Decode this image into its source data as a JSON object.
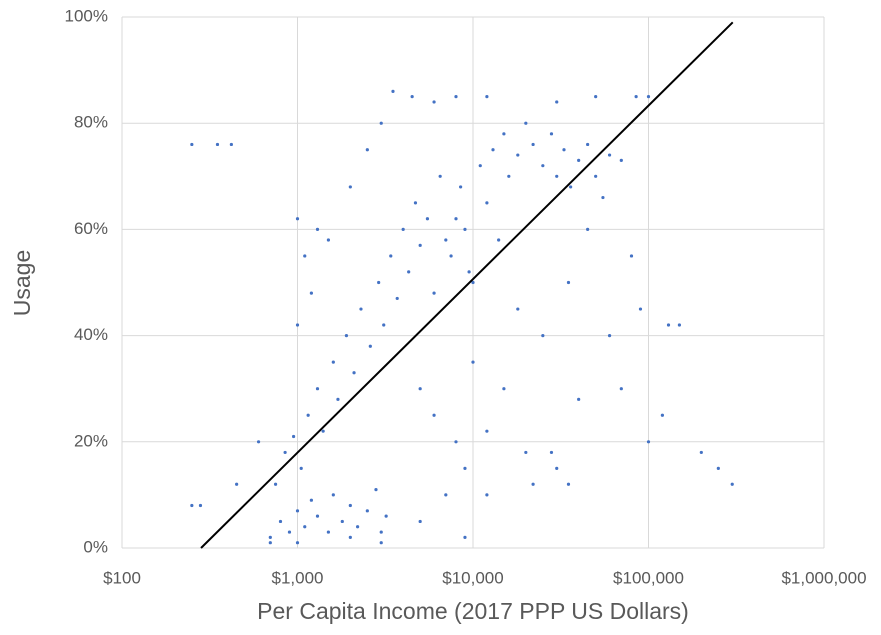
{
  "chart_data": {
    "type": "scatter",
    "x_label": "Per Capita Income (2017 PPP US Dollars)",
    "y_label": "Usage",
    "xscale": "log",
    "grid": true,
    "color": "#4472c4",
    "xlim": [
      100,
      1000000
    ],
    "ylim": [
      0,
      100
    ],
    "xticks": [
      {
        "value": 100,
        "label": "$100"
      },
      {
        "value": 1000,
        "label": "$1,000"
      },
      {
        "value": 10000,
        "label": "$10,000"
      },
      {
        "value": 100000,
        "label": "$100,000"
      },
      {
        "value": 1000000,
        "label": "$1,000,000"
      }
    ],
    "yticks": [
      {
        "value": 0,
        "label": "0%"
      },
      {
        "value": 20,
        "label": "20%"
      },
      {
        "value": 40,
        "label": "40%"
      },
      {
        "value": 60,
        "label": "60%"
      },
      {
        "value": 80,
        "label": "80%"
      },
      {
        "value": 100,
        "label": "100%"
      }
    ],
    "x": [
      700,
      800,
      900,
      1000,
      1100,
      1200,
      1300,
      1500,
      1600,
      1800,
      2000,
      2200,
      2500,
      2800,
      3000,
      3200,
      750,
      850,
      950,
      1050,
      1150,
      1300,
      1400,
      1600,
      1700,
      1900,
      2100,
      2300,
      2600,
      2900,
      3100,
      3400,
      3700,
      4000,
      4300,
      4700,
      5000,
      5500,
      6000,
      6500,
      7000,
      7500,
      8000,
      8500,
      9000,
      9500,
      10000,
      11000,
      12000,
      13000,
      14000,
      15000,
      16000,
      18000,
      20000,
      22000,
      25000,
      28000,
      30000,
      33000,
      36000,
      40000,
      45000,
      50000,
      55000,
      60000,
      70000,
      1000,
      1100,
      1200,
      1000,
      1300,
      2000,
      2500,
      3000,
      3500,
      4500,
      6000,
      8000,
      12000,
      30000,
      50000,
      85000,
      100000,
      1500,
      5000,
      6000,
      8000,
      10000,
      12000,
      15000,
      18000,
      20000,
      25000,
      30000,
      35000,
      40000,
      45000,
      60000,
      70000,
      80000,
      90000,
      100000,
      120000,
      150000,
      130000,
      200000,
      250000,
      300000,
      250,
      350,
      420,
      250,
      280,
      450,
      600,
      700,
      1000,
      2000,
      3000,
      9000,
      5000,
      7000,
      9000,
      12000,
      22000,
      28000,
      35000
    ],
    "values": [
      2,
      5,
      3,
      7,
      4,
      9,
      6,
      3,
      10,
      5,
      8,
      4,
      7,
      11,
      3,
      6,
      12,
      18,
      21,
      15,
      25,
      30,
      22,
      35,
      28,
      40,
      33,
      45,
      38,
      50,
      42,
      55,
      47,
      60,
      52,
      65,
      57,
      62,
      48,
      70,
      58,
      55,
      62,
      68,
      60,
      52,
      50,
      72,
      65,
      75,
      58,
      78,
      70,
      74,
      80,
      76,
      72,
      78,
      70,
      75,
      68,
      73,
      76,
      70,
      66,
      74,
      73,
      62,
      55,
      48,
      42,
      60,
      68,
      75,
      80,
      86,
      85,
      84,
      85,
      85,
      84,
      85,
      85,
      85,
      58,
      30,
      25,
      20,
      35,
      22,
      30,
      45,
      18,
      40,
      15,
      50,
      28,
      60,
      40,
      30,
      55,
      45,
      20,
      25,
      42,
      42,
      18,
      15,
      12,
      76,
      76,
      76,
      8,
      8,
      12,
      20,
      1,
      1,
      2,
      1,
      2,
      5,
      10,
      15,
      10,
      12,
      18,
      12
    ],
    "trendline": {
      "x": [
        282,
        302000
      ],
      "values": [
        0,
        99
      ],
      "color": "#000000"
    }
  }
}
